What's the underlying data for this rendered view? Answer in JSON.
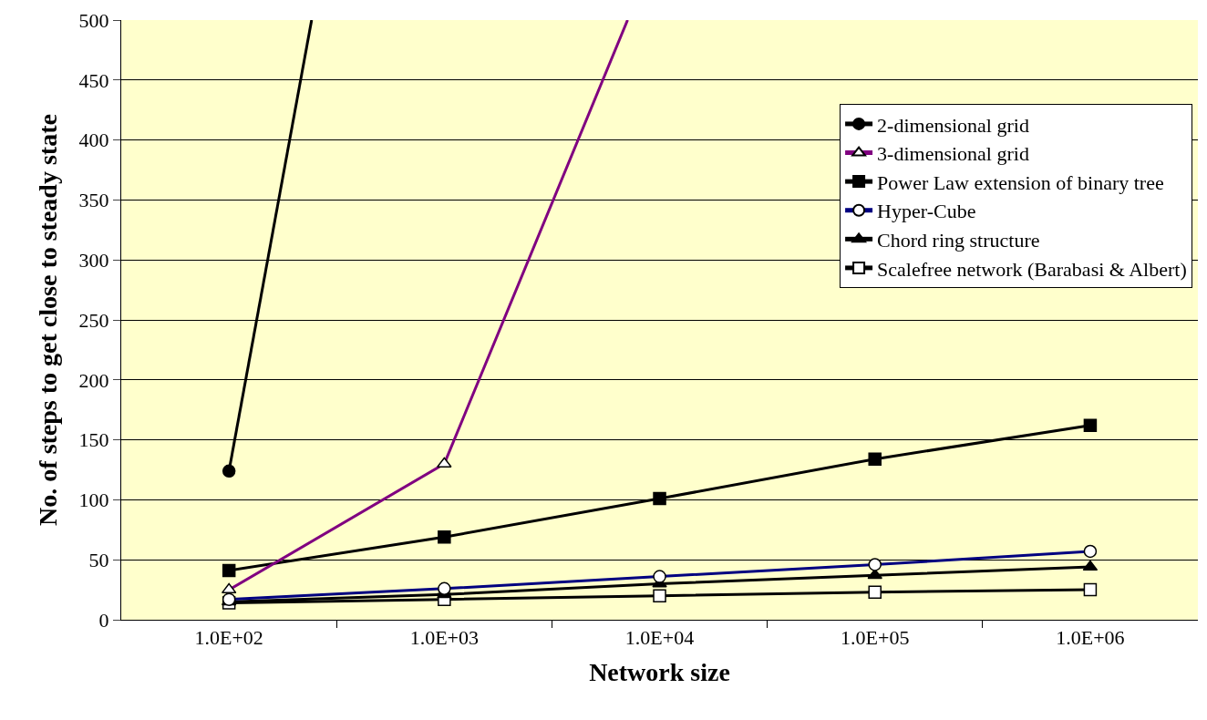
{
  "chart_data": {
    "type": "line",
    "xlabel": "Network size",
    "ylabel": "No. of steps to get close to steady state",
    "x": [
      100,
      1000,
      10000,
      100000,
      1000000
    ],
    "log": "x",
    "xlim": [
      31.6,
      3162000
    ],
    "xticks": [
      {
        "value": 100,
        "label": "1.0E+02"
      },
      {
        "value": 316.2,
        "label": null
      },
      {
        "value": 1000,
        "label": "1.0E+03"
      },
      {
        "value": 3162,
        "label": null
      },
      {
        "value": 10000,
        "label": "1.0E+04"
      },
      {
        "value": 31620,
        "label": null
      },
      {
        "value": 100000,
        "label": "1.0E+05"
      },
      {
        "value": 316200,
        "label": null
      },
      {
        "value": 1000000,
        "label": "1.0E+06"
      }
    ],
    "ylim": [
      0,
      500
    ],
    "yticks": [
      0,
      50,
      100,
      150,
      200,
      250,
      300,
      350,
      400,
      450,
      500
    ],
    "grid": "y",
    "legend": "top right",
    "series": [
      {
        "name": "2-dimensional grid",
        "color": "#000000",
        "marker": "circle",
        "x": [
          100,
          242
        ],
        "values": [
          124,
          500
        ]
      },
      {
        "name": "3-dimensional grid",
        "color": "#800080",
        "marker": "triangle",
        "x": [
          100,
          1000,
          7100
        ],
        "values": [
          25,
          130,
          500
        ]
      },
      {
        "name": "Power Law extension of binary tree",
        "color": "#000000",
        "marker": "square",
        "values": [
          41,
          69,
          101,
          134,
          162
        ]
      },
      {
        "name": "Hyper-Cube",
        "color": "#000080",
        "marker": "circle",
        "values": [
          17,
          26,
          36,
          46,
          57
        ]
      },
      {
        "name": "Chord ring structure",
        "color": "#000000",
        "marker": "triangle",
        "values": [
          15,
          21,
          30,
          37,
          44
        ]
      },
      {
        "name": "Scalefree network (Barabasi & Albert)",
        "color": "#000000",
        "marker": "square",
        "values": [
          14,
          17,
          20,
          23,
          25
        ]
      }
    ]
  }
}
